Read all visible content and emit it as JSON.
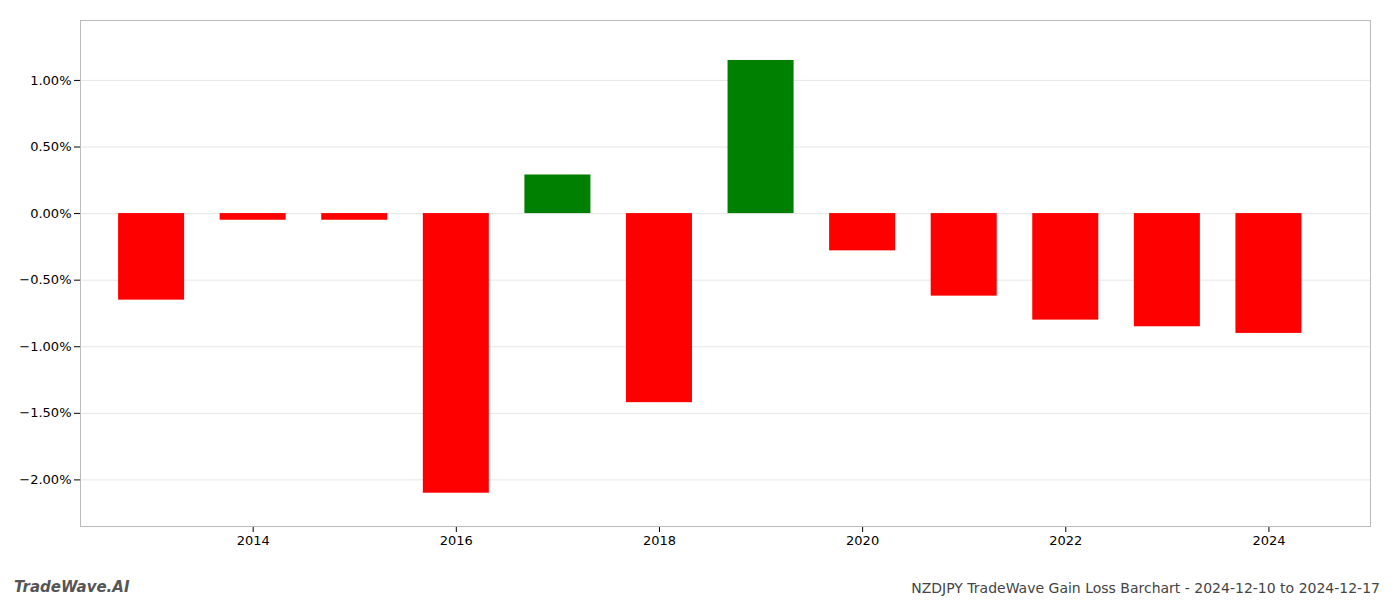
{
  "chart_data": {
    "type": "bar",
    "title": "NZDJPY TradeWave Gain Loss Barchart - 2024-12-10 to 2024-12-17",
    "annotations": [
      "TradeWave.AI"
    ],
    "x": [
      2013,
      2014,
      2015,
      2016,
      2017,
      2018,
      2019,
      2020,
      2021,
      2022,
      2023,
      2024
    ],
    "values": [
      -0.65,
      -0.05,
      -0.05,
      -2.1,
      0.29,
      -1.42,
      1.15,
      -0.28,
      -0.62,
      -0.8,
      -0.85,
      -0.9
    ],
    "colors": [
      "#ff0000",
      "#ff0000",
      "#ff0000",
      "#ff0000",
      "#008000",
      "#ff0000",
      "#008000",
      "#ff0000",
      "#ff0000",
      "#ff0000",
      "#ff0000",
      "#ff0000"
    ],
    "xlim": [
      2012.3,
      2025.0
    ],
    "xticks": [
      2014,
      2016,
      2018,
      2020,
      2022,
      2024
    ],
    "ylim": [
      -2.35,
      1.45
    ],
    "yticks": [
      {
        "value": -2.0,
        "label": "−2.00%"
      },
      {
        "value": -1.5,
        "label": "−1.50%"
      },
      {
        "value": -1.0,
        "label": "−1.00%"
      },
      {
        "value": -0.5,
        "label": "−0.50%"
      },
      {
        "value": 0.0,
        "label": "0.00%"
      },
      {
        "value": 0.5,
        "label": "0.50%"
      },
      {
        "value": 1.0,
        "label": "1.00%"
      }
    ],
    "grid": true
  }
}
